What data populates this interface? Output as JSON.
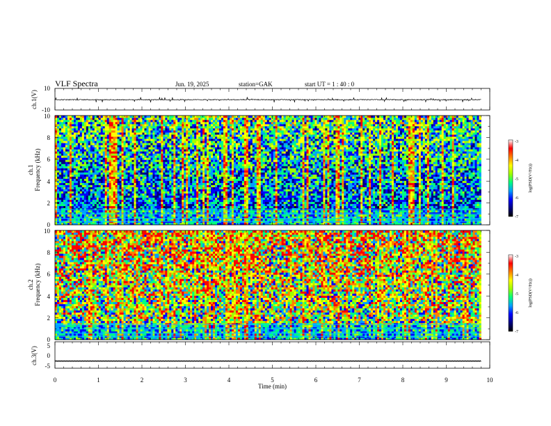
{
  "header": {
    "title": "VLF  Spectra",
    "date": "Jun. 19, 2025",
    "station": "station=GAK",
    "start_ut": "start  UT =   1 : 40 : 0"
  },
  "chart_data": [
    {
      "type": "line",
      "panel": "ch1-waveform",
      "ylabel": "ch.1(V)",
      "ylim": [
        -10,
        10
      ],
      "ytick_labels": [
        "10",
        "-10"
      ],
      "baseline": -0.5,
      "spike_range": [
        -3,
        2
      ],
      "x_range_min": [
        0,
        9.8
      ],
      "color": "#000000"
    },
    {
      "type": "heatmap",
      "panel": "ch1-spectrogram",
      "ylabel_lines": [
        "ch.1",
        "Frequency  (kHz)"
      ],
      "ylim": [
        0,
        10
      ],
      "ytick_labels": [
        "0",
        "2",
        "4",
        "6",
        "8",
        "10"
      ],
      "x_range_min": [
        0,
        9.8
      ],
      "colorbar": {
        "label": "log(PSD(V²/Hz))",
        "range": [
          -7,
          -3
        ],
        "tick_labels": [
          "-3",
          "-4",
          "-5",
          "-6",
          "-7"
        ]
      }
    },
    {
      "type": "heatmap",
      "panel": "ch2-spectrogram",
      "ylabel_lines": [
        "ch.2",
        "Frequency  (kHz)"
      ],
      "ylim": [
        0,
        10
      ],
      "ytick_labels": [
        "0",
        "2",
        "4",
        "6",
        "8",
        "10"
      ],
      "x_range_min": [
        0,
        9.8
      ],
      "colorbar": {
        "label": "log(PSD(V²/Hz))",
        "range": [
          -7,
          -3
        ],
        "tick_labels": [
          "-3",
          "-4",
          "-5",
          "-6",
          "-7"
        ]
      }
    },
    {
      "type": "line",
      "panel": "ch3-waveform",
      "ylabel": "ch.3(V)",
      "ylim": [
        -5,
        5
      ],
      "ytick_labels": [
        "5",
        "0",
        "-5"
      ],
      "baseline": -2.3,
      "x_range_min": [
        0,
        9.8
      ],
      "color": "#000000"
    }
  ],
  "xaxis": {
    "label": "Time  (min)",
    "range": [
      0,
      10
    ],
    "tick_labels": [
      "0",
      "1",
      "2",
      "3",
      "4",
      "5",
      "6",
      "7",
      "8",
      "9",
      "10"
    ]
  },
  "colors": {
    "colormap": [
      "#000000",
      "#000080",
      "#0000ff",
      "#00a0ff",
      "#00ff80",
      "#a0ff00",
      "#ffff00",
      "#ff8000",
      "#ff0000",
      "#ffffff"
    ]
  }
}
